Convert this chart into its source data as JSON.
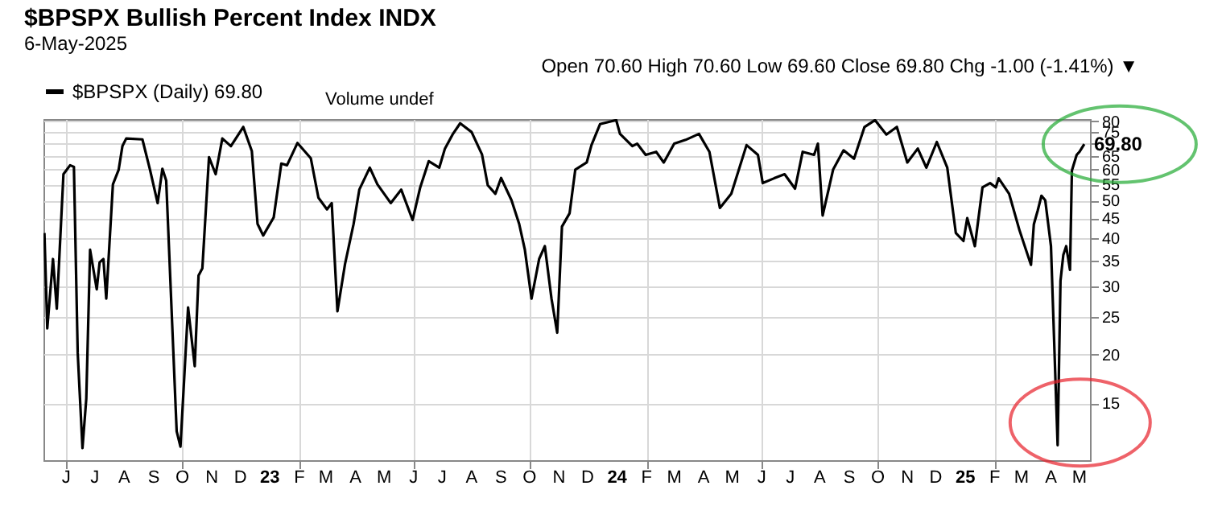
{
  "chart_data": {
    "type": "line",
    "title": "$BPSPX Bullish Percent Index INDX",
    "subtitle": "6-May-2025",
    "annotations": [
      "Open 70.60 High 70.60 Low 69.60 Close 69.80 Chg -1.00 (-1.41%) ▼",
      "Volume undef",
      {
        "text": "69.80",
        "x": "2025-05-06",
        "y": 69.8
      }
    ],
    "x": [
      "2022-05-09",
      "2022-05-12",
      "2022-05-18",
      "2022-05-22",
      "2022-05-23",
      "2022-05-29",
      "2022-06-05",
      "2022-06-09",
      "2022-06-13",
      "2022-06-18",
      "2022-06-22",
      "2022-06-26",
      "2022-07-03",
      "2022-07-06",
      "2022-07-10",
      "2022-07-13",
      "2022-07-20",
      "2022-07-26",
      "2022-07-30",
      "2022-08-03",
      "2022-08-20",
      "2022-08-28",
      "2022-09-05",
      "2022-09-10",
      "2022-09-14",
      "2022-09-25",
      "2022-09-29",
      "2022-10-07",
      "2022-10-14",
      "2022-10-18",
      "2022-10-22",
      "2022-10-29",
      "2022-11-05",
      "2022-11-12",
      "2022-11-21",
      "2022-12-04",
      "2022-12-13",
      "2022-12-19",
      "2022-12-25",
      "2023-01-05",
      "2023-01-13",
      "2023-01-19",
      "2023-01-30",
      "2023-02-13",
      "2023-02-21",
      "2023-03-02",
      "2023-03-07",
      "2023-03-13",
      "2023-03-21",
      "2023-03-30",
      "2023-04-05",
      "2023-04-16",
      "2023-04-24",
      "2023-05-08",
      "2023-05-19",
      "2023-05-31",
      "2023-06-08",
      "2023-06-17",
      "2023-06-28",
      "2023-07-04",
      "2023-07-12",
      "2023-07-20",
      "2023-08-01",
      "2023-08-12",
      "2023-08-18",
      "2023-08-26",
      "2023-09-01",
      "2023-09-12",
      "2023-09-20",
      "2023-09-26",
      "2023-10-03",
      "2023-10-11",
      "2023-10-17",
      "2023-10-24",
      "2023-10-30",
      "2023-11-04",
      "2023-11-12",
      "2023-11-18",
      "2023-11-30",
      "2023-12-05",
      "2023-12-14",
      "2023-12-31",
      "2024-01-04",
      "2024-01-17",
      "2024-01-22",
      "2024-01-31",
      "2024-02-11",
      "2024-02-19",
      "2024-03-01",
      "2024-03-13",
      "2024-03-27",
      "2024-04-07",
      "2024-04-18",
      "2024-04-30",
      "2024-05-16",
      "2024-05-28",
      "2024-06-02",
      "2024-06-14",
      "2024-06-25",
      "2024-07-06",
      "2024-07-14",
      "2024-07-26",
      "2024-07-30",
      "2024-08-04",
      "2024-08-15",
      "2024-08-26",
      "2024-09-06",
      "2024-09-17",
      "2024-09-28",
      "2024-10-10",
      "2024-10-21",
      "2024-11-01",
      "2024-11-12",
      "2024-11-21",
      "2024-12-02",
      "2024-12-13",
      "2024-12-22",
      "2024-12-30",
      "2025-01-03",
      "2025-01-11",
      "2025-01-19",
      "2025-01-27",
      "2025-02-02",
      "2025-02-05",
      "2025-02-16",
      "2025-02-27",
      "2025-03-11",
      "2025-03-14",
      "2025-03-18",
      "2025-03-22",
      "2025-03-26",
      "2025-04-01",
      "2025-04-08",
      "2025-04-11",
      "2025-04-14",
      "2025-04-17",
      "2025-04-21",
      "2025-04-23",
      "2025-04-28",
      "2025-05-01",
      "2025-05-06"
    ],
    "series": [
      {
        "name": "$BPSPX (Daily) 69.80",
        "color": "#000000",
        "values": [
          41.2,
          23.4,
          35.3,
          26.3,
          29.5,
          58.4,
          61.6,
          61,
          20.2,
          11.5,
          15.4,
          37.3,
          29.5,
          34.6,
          35.3,
          27.9,
          55,
          59.9,
          69,
          72.2,
          71.8,
          59.9,
          49.2,
          60.3,
          56.2,
          12.7,
          11.6,
          26.5,
          18.7,
          32,
          33.4,
          64.6,
          58.4,
          72.2,
          69,
          77.3,
          67,
          43.5,
          40.6,
          45.2,
          62.2,
          61.6,
          70.3,
          64.2,
          50.8,
          47.4,
          49.2,
          25.9,
          34.3,
          43.5,
          53.3,
          60.7,
          55,
          49.2,
          53.3,
          44.5,
          54,
          63.1,
          60.7,
          68,
          73.9,
          79,
          75,
          65.6,
          54.7,
          52,
          57.1,
          50,
          43.5,
          37.3,
          27.9,
          35.3,
          38.1,
          27.9,
          22.8,
          42.8,
          46.3,
          60,
          62.6,
          69.4,
          78.6,
          80.5,
          74.2,
          69,
          70,
          65.5,
          66.7,
          62.6,
          70,
          71.6,
          74.2,
          66.7,
          47.8,
          52,
          69.4,
          65.5,
          55.4,
          57,
          58.4,
          53.6,
          66.7,
          65.5,
          70,
          45.7,
          60,
          67.3,
          64,
          77.3,
          80.5,
          73.9,
          77.3,
          62.6,
          68,
          60.7,
          70.7,
          60.7,
          41.2,
          39.3,
          45,
          38.1,
          54,
          55.4,
          54,
          57,
          52,
          41.8,
          34.1,
          43.4,
          47,
          51.4,
          50,
          38.1,
          11.7,
          31,
          36.2,
          38.1,
          33.1,
          59.7,
          65.5,
          66.7,
          69.8
        ]
      }
    ],
    "xlim": [
      "2022-05-08",
      "2025-05-12"
    ],
    "xticks": [
      {
        "value": "2022-06-01",
        "label": "J"
      },
      {
        "value": "2022-07-01",
        "label": "J"
      },
      {
        "value": "2022-08-01",
        "label": "A"
      },
      {
        "value": "2022-09-01",
        "label": "S"
      },
      {
        "value": "2022-10-01",
        "label": "O"
      },
      {
        "value": "2022-11-01",
        "label": "N"
      },
      {
        "value": "2022-12-01",
        "label": "D"
      },
      {
        "value": "2023-01-01",
        "label": "23"
      },
      {
        "value": "2023-02-01",
        "label": "F"
      },
      {
        "value": "2023-03-01",
        "label": "M"
      },
      {
        "value": "2023-04-01",
        "label": "A"
      },
      {
        "value": "2023-05-01",
        "label": "M"
      },
      {
        "value": "2023-06-01",
        "label": "J"
      },
      {
        "value": "2023-07-01",
        "label": "J"
      },
      {
        "value": "2023-08-01",
        "label": "A"
      },
      {
        "value": "2023-09-01",
        "label": "S"
      },
      {
        "value": "2023-10-01",
        "label": "O"
      },
      {
        "value": "2023-11-01",
        "label": "N"
      },
      {
        "value": "2023-12-01",
        "label": "D"
      },
      {
        "value": "2024-01-01",
        "label": "24"
      },
      {
        "value": "2024-02-01",
        "label": "F"
      },
      {
        "value": "2024-03-01",
        "label": "M"
      },
      {
        "value": "2024-04-01",
        "label": "A"
      },
      {
        "value": "2024-05-01",
        "label": "M"
      },
      {
        "value": "2024-06-01",
        "label": "J"
      },
      {
        "value": "2024-07-01",
        "label": "J"
      },
      {
        "value": "2024-08-01",
        "label": "A"
      },
      {
        "value": "2024-09-01",
        "label": "S"
      },
      {
        "value": "2024-10-01",
        "label": "O"
      },
      {
        "value": "2024-11-01",
        "label": "N"
      },
      {
        "value": "2024-12-01",
        "label": "D"
      },
      {
        "value": "2025-01-01",
        "label": "25"
      },
      {
        "value": "2025-02-01",
        "label": "F"
      },
      {
        "value": "2025-03-01",
        "label": "M"
      },
      {
        "value": "2025-04-01",
        "label": "A"
      },
      {
        "value": "2025-05-01",
        "label": "M"
      }
    ],
    "ylim": [
      10.7,
      81
    ],
    "yticks": [
      15,
      20,
      25,
      30,
      35,
      40,
      45,
      50,
      55,
      60,
      65,
      {
        "value": 70,
        "label": null
      },
      75,
      80
    ],
    "log": true,
    "grid": true,
    "legend": "top left"
  }
}
